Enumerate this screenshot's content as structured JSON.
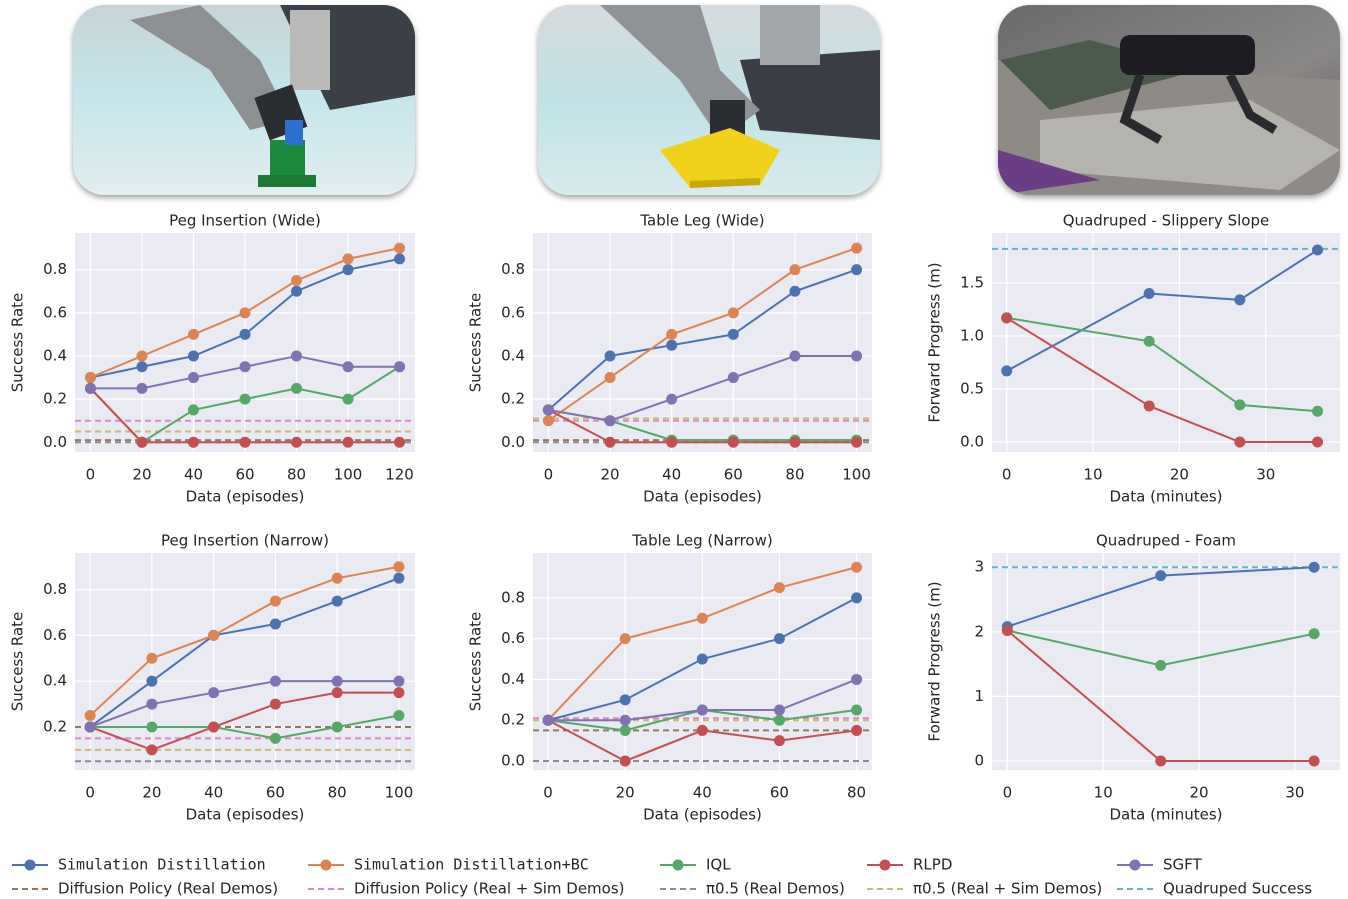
{
  "legend": [
    {
      "name": "Simulation Distillation",
      "color": "#4c72b0",
      "style": "solid"
    },
    {
      "name": "Simulation Distillation+BC",
      "color": "#dd8452",
      "style": "solid"
    },
    {
      "name": "IQL",
      "color": "#55a868",
      "style": "solid"
    },
    {
      "name": "RLPD",
      "color": "#c44e52",
      "style": "solid"
    },
    {
      "name": "SGFT",
      "color": "#8172b3",
      "style": "solid"
    },
    {
      "name": "Diffusion Policy (Real Demos)",
      "color": "#937860",
      "style": "dashed"
    },
    {
      "name": "Diffusion Policy (Real + Sim Demos)",
      "color": "#da8bc3",
      "style": "dashed"
    },
    {
      "name": "π0.5 (Real Demos)",
      "color": "#8c8c8c",
      "style": "dashed"
    },
    {
      "name": "π0.5 (Real + Sim Demos)",
      "color": "#ccb974",
      "style": "dashed"
    },
    {
      "name": "Quadruped Success",
      "color": "#64b5cd",
      "style": "dashed"
    }
  ],
  "chart_data": [
    {
      "type": "line",
      "title": "Peg Insertion (Wide)",
      "xlabel": "Data (episodes)",
      "ylabel": "Success Rate",
      "x": [
        0,
        20,
        40,
        60,
        80,
        100,
        120
      ],
      "xlim": [
        -6,
        126
      ],
      "xticks": [
        0,
        20,
        40,
        60,
        80,
        100,
        120
      ],
      "ylim": [
        -0.045,
        0.97
      ],
      "yticks": [
        {
          "value": 0,
          "label": "0.0"
        },
        0.2,
        0.4,
        0.6,
        0.8
      ],
      "grid": true,
      "hlines": [
        {
          "name": "Diffusion Policy (Real Demos)",
          "color": "#937860",
          "value": 0.01
        },
        {
          "name": "Diffusion Policy (Real + Sim Demos)",
          "color": "#da8bc3",
          "value": 0.1
        },
        {
          "name": "π0.5 (Real Demos)",
          "color": "#8c8c8c",
          "value": 0
        },
        {
          "name": "π0.5 (Real + Sim Demos)",
          "color": "#ccb974",
          "value": 0.05
        }
      ],
      "series": [
        {
          "name": "Simulation Distillation",
          "color": "#4c72b0",
          "values": [
            0.3,
            0.35,
            0.4,
            0.5,
            0.7,
            0.8,
            0.85
          ]
        },
        {
          "name": "Simulation Distillation+BC",
          "color": "#dd8452",
          "values": [
            0.3,
            0.4,
            0.5,
            0.6,
            0.75,
            0.85,
            0.9
          ]
        },
        {
          "name": "IQL",
          "color": "#55a868",
          "values": [
            0.25,
            0,
            0.15,
            0.2,
            0.25,
            0.2,
            0.35
          ]
        },
        {
          "name": "RLPD",
          "color": "#c44e52",
          "values": [
            0.25,
            0,
            0,
            0,
            0,
            0,
            0
          ]
        },
        {
          "name": "SGFT",
          "color": "#8172b3",
          "values": [
            0.25,
            0.25,
            0.3,
            0.35,
            0.4,
            0.35,
            0.35
          ]
        }
      ]
    },
    {
      "type": "line",
      "title": "Table Leg (Wide)",
      "xlabel": "Data (episodes)",
      "ylabel": "Success Rate",
      "x": [
        0,
        20,
        40,
        60,
        80,
        100
      ],
      "xlim": [
        -5,
        105
      ],
      "xticks": [
        0,
        20,
        40,
        60,
        80,
        100
      ],
      "ylim": [
        -0.045,
        0.97
      ],
      "yticks": [
        {
          "value": 0,
          "label": "0.0"
        },
        0.2,
        0.4,
        0.6,
        0.8
      ],
      "grid": true,
      "hlines": [
        {
          "name": "Diffusion Policy (Real Demos)",
          "color": "#937860",
          "value": 0.01
        },
        {
          "name": "Diffusion Policy (Real + Sim Demos)",
          "color": "#da8bc3",
          "value": 0.1
        },
        {
          "name": "π0.5 (Real Demos)",
          "color": "#8c8c8c",
          "value": 0
        },
        {
          "name": "π0.5 (Real + Sim Demos)",
          "color": "#ccb974",
          "value": 0.11
        }
      ],
      "series": [
        {
          "name": "Simulation Distillation",
          "color": "#4c72b0",
          "values": [
            0.15,
            0.4,
            0.45,
            0.5,
            0.7,
            0.8
          ]
        },
        {
          "name": "Simulation Distillation+BC",
          "color": "#dd8452",
          "values": [
            0.1,
            0.3,
            0.5,
            0.6,
            0.8,
            0.9
          ]
        },
        {
          "name": "IQL",
          "color": "#55a868",
          "values": [
            0.15,
            0.1,
            0.01,
            0.01,
            0.01,
            0.01
          ]
        },
        {
          "name": "RLPD",
          "color": "#c44e52",
          "values": [
            0.15,
            0,
            0,
            0,
            0,
            0
          ]
        },
        {
          "name": "SGFT",
          "color": "#8172b3",
          "values": [
            0.15,
            0.1,
            0.2,
            0.3,
            0.4,
            0.4
          ]
        }
      ]
    },
    {
      "type": "line",
      "title": "Quadruped - Slippery Slope",
      "xlabel": "Data (minutes)",
      "ylabel": "Forward Progress (m)",
      "x": [
        0,
        16.5,
        27,
        36
      ],
      "xlim": [
        -1.7,
        38.6
      ],
      "xticks": [
        0,
        10,
        20,
        30
      ],
      "ylim": [
        -0.094,
        1.97
      ],
      "yticks": [
        {
          "value": 0,
          "label": "0.0"
        },
        0.5,
        {
          "value": 1,
          "label": "1.0"
        },
        1.5
      ],
      "grid": true,
      "hlines": [
        {
          "name": "Quadruped Success",
          "color": "#64b5cd",
          "value": 1.82
        }
      ],
      "series": [
        {
          "name": "Simulation Distillation",
          "color": "#4c72b0",
          "values": [
            0.67,
            1.4,
            1.34,
            1.81
          ]
        },
        {
          "name": "IQL",
          "color": "#55a868",
          "values": [
            1.17,
            0.95,
            0.35,
            0.29
          ]
        },
        {
          "name": "RLPD",
          "color": "#c44e52",
          "values": [
            1.17,
            0.34,
            0,
            0
          ]
        }
      ]
    },
    {
      "type": "line",
      "title": "Peg Insertion (Narrow)",
      "xlabel": "Data (episodes)",
      "ylabel": "Success Rate",
      "x": [
        0,
        20,
        40,
        60,
        80,
        100
      ],
      "xlim": [
        -4.9,
        105.2
      ],
      "xticks": [
        0,
        20,
        40,
        60,
        80,
        100
      ],
      "ylim": [
        0.012,
        0.96
      ],
      "yticks": [
        0.2,
        0.4,
        0.6,
        0.8
      ],
      "grid": true,
      "hlines": [
        {
          "name": "Diffusion Policy (Real Demos)",
          "color": "#937860",
          "value": 0.2
        },
        {
          "name": "Diffusion Policy (Real + Sim Demos)",
          "color": "#da8bc3",
          "value": 0.15
        },
        {
          "name": "π0.5 (Real Demos)",
          "color": "#8c8c8c",
          "value": 0.05
        },
        {
          "name": "π0.5 (Real + Sim Demos)",
          "color": "#ccb974",
          "value": 0.1
        }
      ],
      "series": [
        {
          "name": "Simulation Distillation",
          "color": "#4c72b0",
          "values": [
            0.2,
            0.4,
            0.6,
            0.65,
            0.75,
            0.85
          ]
        },
        {
          "name": "Simulation Distillation+BC",
          "color": "#dd8452",
          "values": [
            0.25,
            0.5,
            0.6,
            0.75,
            0.85,
            0.9
          ]
        },
        {
          "name": "IQL",
          "color": "#55a868",
          "values": [
            0.2,
            0.2,
            0.2,
            0.15,
            0.2,
            0.25
          ]
        },
        {
          "name": "RLPD",
          "color": "#c44e52",
          "values": [
            0.2,
            0.1,
            0.2,
            0.3,
            0.35,
            0.35
          ]
        },
        {
          "name": "SGFT",
          "color": "#8172b3",
          "values": [
            0.2,
            0.3,
            0.35,
            0.4,
            0.4,
            0.4
          ]
        }
      ]
    },
    {
      "type": "line",
      "title": "Table Leg (Narrow)",
      "xlabel": "Data (episodes)",
      "ylabel": "Success Rate",
      "x": [
        0,
        20,
        40,
        60,
        80
      ],
      "xlim": [
        -3.9,
        84
      ],
      "xticks": [
        0,
        20,
        40,
        60,
        80
      ],
      "ylim": [
        -0.044,
        1.02
      ],
      "yticks": [
        {
          "value": 0,
          "label": "0.0"
        },
        0.2,
        0.4,
        0.6,
        0.8
      ],
      "grid": true,
      "hlines": [
        {
          "name": "Diffusion Policy (Real Demos)",
          "color": "#937860",
          "value": 0.15
        },
        {
          "name": "Diffusion Policy (Real + Sim Demos)",
          "color": "#da8bc3",
          "value": 0.21
        },
        {
          "name": "π0.5 (Real Demos)",
          "color": "#8c8c8c",
          "value": 0
        },
        {
          "name": "π0.5 (Real + Sim Demos)",
          "color": "#ccb974",
          "value": 0.2
        }
      ],
      "series": [
        {
          "name": "Simulation Distillation",
          "color": "#4c72b0",
          "values": [
            0.2,
            0.3,
            0.5,
            0.6,
            0.8
          ]
        },
        {
          "name": "Simulation Distillation+BC",
          "color": "#dd8452",
          "values": [
            0.2,
            0.6,
            0.7,
            0.85,
            0.95
          ]
        },
        {
          "name": "IQL",
          "color": "#55a868",
          "values": [
            0.2,
            0.15,
            0.25,
            0.2,
            0.25
          ]
        },
        {
          "name": "RLPD",
          "color": "#c44e52",
          "values": [
            0.2,
            0,
            0.15,
            0.1,
            0.15
          ]
        },
        {
          "name": "SGFT",
          "color": "#8172b3",
          "values": [
            0.2,
            0.2,
            0.25,
            0.25,
            0.4
          ]
        }
      ]
    },
    {
      "type": "line",
      "title": "Quadruped - Foam",
      "xlabel": "Data (minutes)",
      "ylabel": "Forward Progress (m)",
      "x": [
        0,
        16,
        32
      ],
      "xlim": [
        -1.6,
        34.7
      ],
      "xticks": [
        0,
        10,
        20,
        30
      ],
      "ylim": [
        -0.14,
        3.22
      ],
      "yticks": [
        0,
        1,
        2,
        3
      ],
      "grid": true,
      "hlines": [
        {
          "name": "Quadruped Success",
          "color": "#64b5cd",
          "value": 3
        }
      ],
      "series": [
        {
          "name": "Simulation Distillation",
          "color": "#4c72b0",
          "values": [
            2.08,
            2.87,
            3
          ]
        },
        {
          "name": "IQL",
          "color": "#55a868",
          "values": [
            2.02,
            1.48,
            1.97
          ]
        },
        {
          "name": "RLPD",
          "color": "#c44e52",
          "values": [
            2.02,
            0,
            0
          ]
        }
      ]
    }
  ]
}
